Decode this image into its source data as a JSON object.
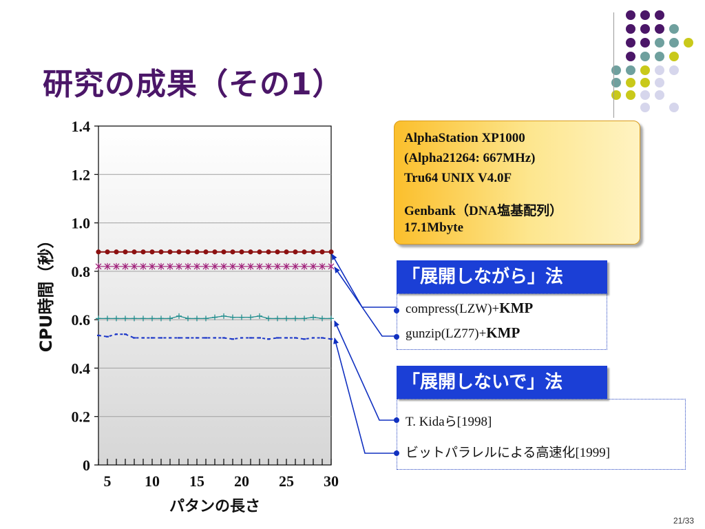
{
  "slide": {
    "title": "研究の成果（その1）",
    "page_number": "21/33"
  },
  "info_box": {
    "lines": [
      "AlphaStation XP1000",
      "(Alpha21264: 667MHz)",
      "Tru64 UNIX V4.0F",
      "Genbank（DNA塩基配列）",
      "17.1Mbyte"
    ]
  },
  "section1": {
    "heading": "「展開しながら」法",
    "items": [
      {
        "text": "compress(LZW)+",
        "bold": "KMP"
      },
      {
        "text": "gunzip(LZ77)+",
        "bold": "KMP"
      }
    ]
  },
  "section2": {
    "heading": "「展開しないで」法",
    "items": [
      {
        "text": "T. Kida",
        "jp": "ら",
        "tail": "[1998]"
      },
      {
        "jp": "ビットパラレルによる高速化",
        "tail": "[1999]"
      }
    ]
  },
  "colors": {
    "title": "#4b1668",
    "series_compress": "#8b1010",
    "series_gunzip": "#a0207a",
    "series_kida": "#1a8a8a",
    "series_bitparallel": "#1a35c8",
    "heading_bg": "#1b3fd6",
    "arrow": "#1030c0"
  },
  "decor_dots": [
    {
      "color": "#4b1668",
      "count": 10
    },
    {
      "color": "#6fa09e",
      "count": 10
    },
    {
      "color": "#c9c91a",
      "count": 6
    },
    {
      "color": "#d6d6ec",
      "count": 6
    }
  ],
  "chart_data": {
    "type": "line",
    "xlabel": "パタンの長さ",
    "ylabel": "CPU時間（秒）",
    "xlim": [
      4,
      30
    ],
    "ylim": [
      0,
      1.4
    ],
    "x_ticks": [
      "5",
      "10",
      "15",
      "20",
      "25",
      "30"
    ],
    "y_ticks": [
      "0",
      "0.2",
      "0.4",
      "0.6",
      "0.8",
      "1.0",
      "1.2",
      "1.4"
    ],
    "x": [
      4,
      5,
      6,
      7,
      8,
      9,
      10,
      11,
      12,
      13,
      14,
      15,
      16,
      17,
      18,
      19,
      20,
      21,
      22,
      23,
      24,
      25,
      26,
      27,
      28,
      29,
      30
    ],
    "series": [
      {
        "key": "compress",
        "marker": "circle",
        "values": [
          0.88,
          0.88,
          0.88,
          0.88,
          0.88,
          0.88,
          0.88,
          0.88,
          0.88,
          0.88,
          0.88,
          0.88,
          0.88,
          0.88,
          0.88,
          0.88,
          0.88,
          0.88,
          0.88,
          0.88,
          0.88,
          0.88,
          0.88,
          0.88,
          0.88,
          0.88,
          0.88
        ]
      },
      {
        "key": "gunzip",
        "marker": "star",
        "values": [
          0.82,
          0.82,
          0.82,
          0.82,
          0.82,
          0.82,
          0.82,
          0.82,
          0.82,
          0.82,
          0.82,
          0.82,
          0.82,
          0.82,
          0.82,
          0.82,
          0.82,
          0.82,
          0.82,
          0.82,
          0.82,
          0.82,
          0.82,
          0.82,
          0.82,
          0.82,
          0.82
        ]
      },
      {
        "key": "kida",
        "marker": "plus",
        "values": [
          0.605,
          0.605,
          0.605,
          0.605,
          0.605,
          0.605,
          0.605,
          0.605,
          0.605,
          0.615,
          0.605,
          0.605,
          0.605,
          0.61,
          0.615,
          0.61,
          0.61,
          0.61,
          0.615,
          0.605,
          0.605,
          0.605,
          0.605,
          0.605,
          0.61,
          0.605,
          0.605
        ]
      },
      {
        "key": "bitparallel",
        "marker": "dash",
        "values": [
          0.535,
          0.53,
          0.54,
          0.54,
          0.525,
          0.525,
          0.525,
          0.525,
          0.525,
          0.525,
          0.525,
          0.525,
          0.525,
          0.525,
          0.525,
          0.52,
          0.525,
          0.525,
          0.525,
          0.52,
          0.525,
          0.525,
          0.525,
          0.52,
          0.525,
          0.525,
          0.52
        ]
      }
    ]
  }
}
